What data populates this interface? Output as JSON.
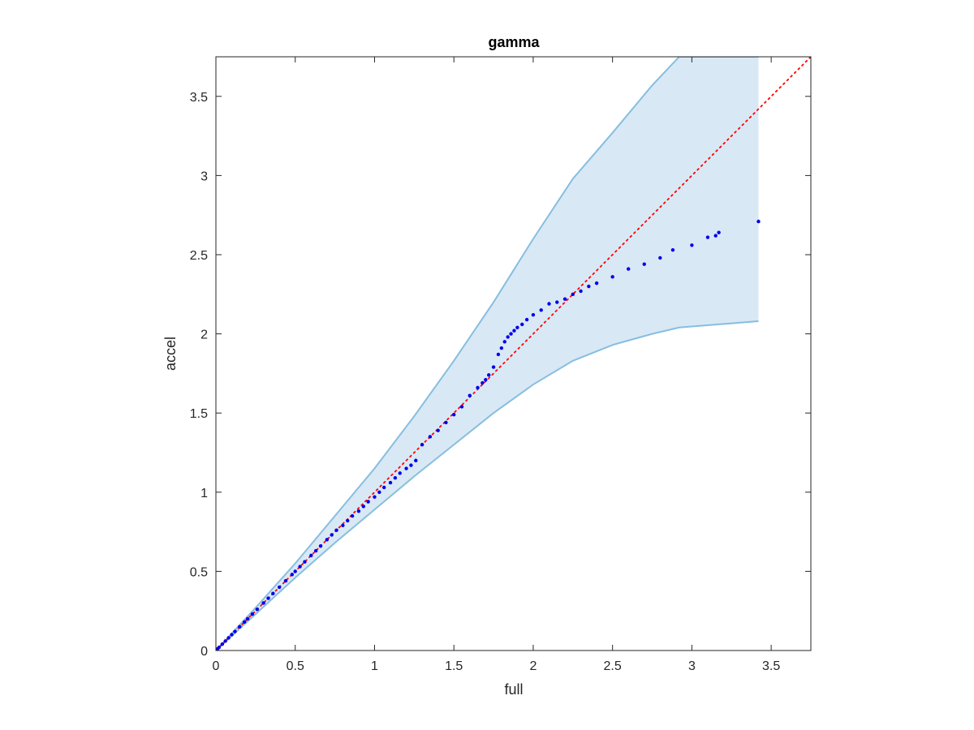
{
  "chart_data": {
    "type": "scatter",
    "title": "gamma",
    "xlabel": "full",
    "ylabel": "accel",
    "xlim": [
      0,
      3.75
    ],
    "ylim": [
      0,
      3.75
    ],
    "xticks": [
      "0",
      "0.5",
      "1",
      "1.5",
      "2",
      "2.5",
      "3",
      "3.5"
    ],
    "yticks": [
      "0",
      "0.5",
      "1",
      "1.5",
      "2",
      "2.5",
      "3",
      "3.5"
    ],
    "grid": false,
    "legend": "none",
    "colors": {
      "band_fill": "#d9e8f5",
      "band_edge": "#86bee0",
      "points": "#0000ee",
      "reference_line": "#ff0000"
    },
    "reference_line": {
      "style": "dotted",
      "x": [
        0,
        3.75
      ],
      "y": [
        0,
        3.75
      ]
    },
    "band": {
      "x": [
        0,
        0.25,
        0.5,
        0.75,
        1.0,
        1.25,
        1.5,
        1.75,
        2.0,
        2.25,
        2.5,
        2.75,
        2.92,
        3.42
      ],
      "upper": [
        0,
        0.27,
        0.55,
        0.85,
        1.15,
        1.48,
        1.83,
        2.2,
        2.6,
        2.98,
        3.27,
        3.57,
        3.75,
        3.75
      ],
      "lower": [
        0,
        0.23,
        0.46,
        0.68,
        0.89,
        1.1,
        1.3,
        1.5,
        1.68,
        1.83,
        1.93,
        2.0,
        2.04,
        2.08
      ]
    },
    "series": [
      {
        "x": [
          0.01,
          0.02,
          0.04,
          0.06,
          0.08,
          0.1,
          0.12,
          0.15,
          0.18,
          0.2,
          0.23,
          0.26,
          0.3,
          0.33,
          0.36,
          0.4,
          0.44,
          0.48,
          0.5,
          0.53,
          0.56,
          0.6,
          0.63,
          0.66,
          0.7,
          0.73,
          0.76,
          0.8,
          0.83,
          0.86,
          0.9,
          0.93,
          0.96,
          1.0,
          1.03,
          1.06,
          1.1,
          1.13,
          1.16,
          1.2,
          1.23,
          1.26,
          1.3,
          1.35,
          1.4,
          1.45,
          1.5,
          1.55,
          1.6,
          1.65,
          1.68,
          1.7,
          1.72,
          1.75,
          1.78,
          1.8,
          1.82,
          1.84,
          1.86,
          1.88,
          1.9,
          1.93,
          1.96,
          2.0,
          2.05,
          2.1,
          2.15,
          2.2,
          2.25,
          2.3,
          2.35,
          2.4,
          2.5,
          2.6,
          2.7,
          2.8,
          2.88,
          3.0,
          3.1,
          3.15,
          3.17,
          3.42
        ],
        "y": [
          0.01,
          0.02,
          0.04,
          0.06,
          0.08,
          0.1,
          0.12,
          0.15,
          0.18,
          0.2,
          0.23,
          0.26,
          0.3,
          0.33,
          0.36,
          0.4,
          0.44,
          0.48,
          0.5,
          0.53,
          0.56,
          0.6,
          0.63,
          0.66,
          0.7,
          0.73,
          0.76,
          0.79,
          0.82,
          0.85,
          0.88,
          0.91,
          0.94,
          0.97,
          1.0,
          1.03,
          1.06,
          1.09,
          1.12,
          1.15,
          1.17,
          1.2,
          1.3,
          1.35,
          1.39,
          1.44,
          1.49,
          1.54,
          1.61,
          1.66,
          1.69,
          1.71,
          1.74,
          1.79,
          1.87,
          1.91,
          1.95,
          1.98,
          2.0,
          2.02,
          2.04,
          2.06,
          2.09,
          2.12,
          2.15,
          2.19,
          2.2,
          2.22,
          2.25,
          2.27,
          2.3,
          2.32,
          2.36,
          2.41,
          2.44,
          2.48,
          2.53,
          2.56,
          2.61,
          2.62,
          2.64,
          2.71
        ]
      }
    ]
  }
}
